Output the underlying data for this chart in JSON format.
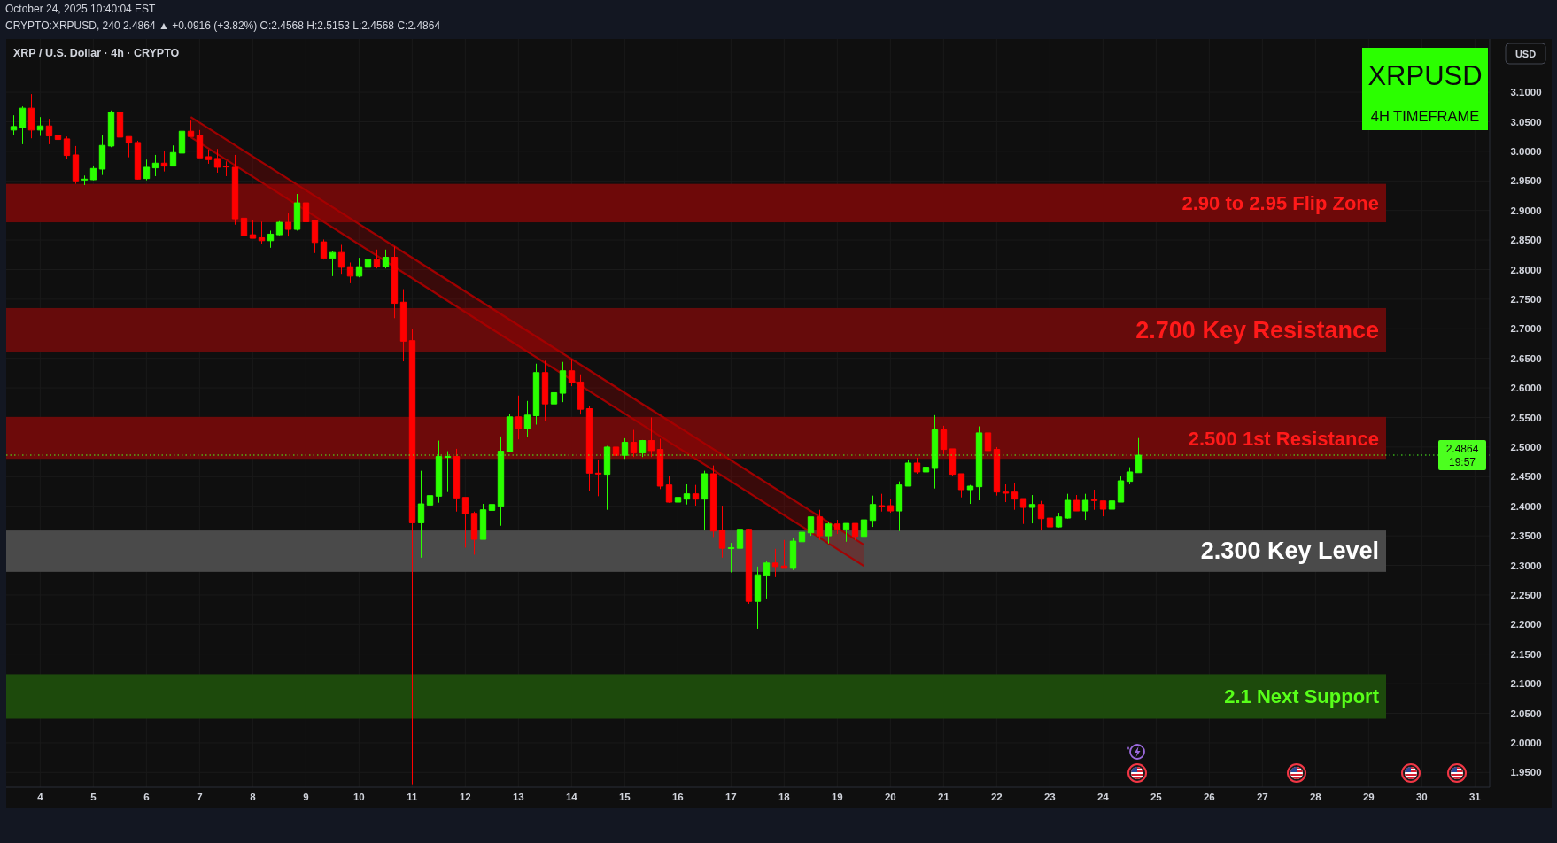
{
  "chart_data": {
    "type": "candlestick",
    "title": "XRP / U.S. Dollar · 4h · CRYPTO",
    "subtitle": "CRYPTO:XRPUSD, 240 2.4864 ▲ +0.0916 (+3.82%) O:2.4568 H:2.5153 L:2.4568 C:2.4864",
    "annotations": [
      "October 24, 2025 10:40:04 EST",
      "XRPUSD",
      "4H TIMEFRAME",
      "USD",
      "19:57"
    ],
    "x": [
      "2025-10-03T12:00",
      "2025-10-03T16:00",
      "2025-10-03T20:00",
      "2025-10-04T00:00",
      "2025-10-04T04:00",
      "2025-10-04T08:00",
      "2025-10-04T12:00",
      "2025-10-04T16:00",
      "2025-10-04T20:00",
      "2025-10-05T00:00",
      "2025-10-05T04:00",
      "2025-10-05T08:00",
      "2025-10-05T12:00",
      "2025-10-05T16:00",
      "2025-10-05T20:00",
      "2025-10-06T00:00",
      "2025-10-06T04:00",
      "2025-10-06T08:00",
      "2025-10-06T12:00",
      "2025-10-06T16:00",
      "2025-10-06T20:00",
      "2025-10-07T00:00",
      "2025-10-07T04:00",
      "2025-10-07T08:00",
      "2025-10-07T12:00",
      "2025-10-07T16:00",
      "2025-10-07T20:00",
      "2025-10-08T00:00",
      "2025-10-08T04:00",
      "2025-10-08T08:00",
      "2025-10-08T12:00",
      "2025-10-08T16:00",
      "2025-10-08T20:00",
      "2025-10-09T00:00",
      "2025-10-09T04:00",
      "2025-10-09T08:00",
      "2025-10-09T12:00",
      "2025-10-09T16:00",
      "2025-10-09T20:00",
      "2025-10-10T00:00",
      "2025-10-10T04:00",
      "2025-10-10T08:00",
      "2025-10-10T12:00",
      "2025-10-10T16:00",
      "2025-10-10T20:00",
      "2025-10-11T00:00",
      "2025-10-11T04:00",
      "2025-10-11T08:00",
      "2025-10-11T12:00",
      "2025-10-11T16:00",
      "2025-10-11T20:00",
      "2025-10-12T00:00",
      "2025-10-12T04:00",
      "2025-10-12T08:00",
      "2025-10-12T12:00",
      "2025-10-12T16:00",
      "2025-10-12T20:00",
      "2025-10-13T00:00",
      "2025-10-13T04:00",
      "2025-10-13T08:00",
      "2025-10-13T12:00",
      "2025-10-13T16:00",
      "2025-10-13T20:00",
      "2025-10-14T00:00",
      "2025-10-14T04:00",
      "2025-10-14T08:00",
      "2025-10-14T12:00",
      "2025-10-14T16:00",
      "2025-10-14T20:00",
      "2025-10-15T00:00",
      "2025-10-15T04:00",
      "2025-10-15T08:00",
      "2025-10-15T12:00",
      "2025-10-15T16:00",
      "2025-10-15T20:00",
      "2025-10-16T00:00",
      "2025-10-16T04:00",
      "2025-10-16T08:00",
      "2025-10-16T12:00",
      "2025-10-16T16:00",
      "2025-10-16T20:00",
      "2025-10-17T00:00",
      "2025-10-17T04:00",
      "2025-10-17T08:00",
      "2025-10-17T12:00",
      "2025-10-17T16:00",
      "2025-10-17T20:00",
      "2025-10-18T00:00",
      "2025-10-18T04:00",
      "2025-10-18T08:00",
      "2025-10-18T12:00",
      "2025-10-18T16:00",
      "2025-10-18T20:00",
      "2025-10-19T00:00",
      "2025-10-19T04:00",
      "2025-10-19T08:00",
      "2025-10-19T12:00",
      "2025-10-19T16:00",
      "2025-10-19T20:00",
      "2025-10-20T00:00",
      "2025-10-20T04:00",
      "2025-10-20T08:00",
      "2025-10-20T12:00",
      "2025-10-20T16:00",
      "2025-10-20T20:00",
      "2025-10-21T00:00",
      "2025-10-21T04:00",
      "2025-10-21T08:00",
      "2025-10-21T12:00",
      "2025-10-21T16:00",
      "2025-10-21T20:00",
      "2025-10-22T00:00",
      "2025-10-22T04:00",
      "2025-10-22T08:00",
      "2025-10-22T12:00",
      "2025-10-22T16:00",
      "2025-10-22T20:00",
      "2025-10-23T00:00",
      "2025-10-23T04:00",
      "2025-10-23T08:00",
      "2025-10-23T12:00",
      "2025-10-23T16:00",
      "2025-10-23T20:00",
      "2025-10-24T00:00",
      "2025-10-24T04:00",
      "2025-10-24T08:00",
      "2025-10-24T12:00",
      "2025-10-24T16:00"
    ],
    "ohlc": [
      [
        3.036,
        3.061,
        3.027,
        3.042
      ],
      [
        3.04,
        3.076,
        3.012,
        3.073
      ],
      [
        3.073,
        3.097,
        3.022,
        3.036
      ],
      [
        3.036,
        3.058,
        3.026,
        3.043
      ],
      [
        3.043,
        3.055,
        3.012,
        3.026
      ],
      [
        3.027,
        3.034,
        3.018,
        3.02
      ],
      [
        3.021,
        3.025,
        2.987,
        2.993
      ],
      [
        2.994,
        3.009,
        2.945,
        2.95
      ],
      [
        2.952,
        2.959,
        2.943,
        2.953
      ],
      [
        2.952,
        2.976,
        2.951,
        2.971
      ],
      [
        2.97,
        3.028,
        2.96,
        3.01
      ],
      [
        3.009,
        3.069,
        3.007,
        3.066
      ],
      [
        3.066,
        3.073,
        3.005,
        3.024
      ],
      [
        3.025,
        3.025,
        2.99,
        3.014
      ],
      [
        3.015,
        3.018,
        2.952,
        2.953
      ],
      [
        2.954,
        2.986,
        2.951,
        2.973
      ],
      [
        2.972,
        2.994,
        2.958,
        2.98
      ],
      [
        2.98,
        3.001,
        2.966,
        2.975
      ],
      [
        2.975,
        3.01,
        2.975,
        2.998
      ],
      [
        2.997,
        3.04,
        2.988,
        3.034
      ],
      [
        3.034,
        3.052,
        3.025,
        3.025
      ],
      [
        3.027,
        3.036,
        2.989,
        2.989
      ],
      [
        2.991,
        3.003,
        2.979,
        2.986
      ],
      [
        2.988,
        3.004,
        2.964,
        2.973
      ],
      [
        2.975,
        2.983,
        2.958,
        2.974
      ],
      [
        2.973,
        2.994,
        2.876,
        2.886
      ],
      [
        2.887,
        2.907,
        2.853,
        2.857
      ],
      [
        2.859,
        2.884,
        2.853,
        2.853
      ],
      [
        2.854,
        2.881,
        2.844,
        2.849
      ],
      [
        2.849,
        2.866,
        2.837,
        2.86
      ],
      [
        2.859,
        2.882,
        2.858,
        2.88
      ],
      [
        2.88,
        2.895,
        2.856,
        2.868
      ],
      [
        2.868,
        2.928,
        2.866,
        2.913
      ],
      [
        2.913,
        2.914,
        2.88,
        2.881
      ],
      [
        2.883,
        2.883,
        2.828,
        2.846
      ],
      [
        2.847,
        2.851,
        2.817,
        2.819
      ],
      [
        2.819,
        2.831,
        2.789,
        2.829
      ],
      [
        2.829,
        2.842,
        2.793,
        2.804
      ],
      [
        2.805,
        2.812,
        2.777,
        2.789
      ],
      [
        2.789,
        2.82,
        2.787,
        2.805
      ],
      [
        2.804,
        2.832,
        2.795,
        2.817
      ],
      [
        2.817,
        2.834,
        2.802,
        2.805
      ],
      [
        2.805,
        2.834,
        2.802,
        2.821
      ],
      [
        2.821,
        2.839,
        2.718,
        2.743
      ],
      [
        2.745,
        2.767,
        2.645,
        2.679
      ],
      [
        2.68,
        2.7,
        1.93,
        2.372
      ],
      [
        2.372,
        2.46,
        2.313,
        2.404
      ],
      [
        2.402,
        2.457,
        2.397,
        2.418
      ],
      [
        2.417,
        2.511,
        2.406,
        2.484
      ],
      [
        2.483,
        2.493,
        2.424,
        2.484
      ],
      [
        2.484,
        2.497,
        2.391,
        2.414
      ],
      [
        2.415,
        2.415,
        2.33,
        2.387
      ],
      [
        2.388,
        2.391,
        2.318,
        2.344
      ],
      [
        2.344,
        2.404,
        2.344,
        2.394
      ],
      [
        2.393,
        2.415,
        2.375,
        2.403
      ],
      [
        2.4,
        2.518,
        2.367,
        2.493
      ],
      [
        2.492,
        2.556,
        2.492,
        2.551
      ],
      [
        2.551,
        2.587,
        2.513,
        2.531
      ],
      [
        2.531,
        2.578,
        2.517,
        2.554
      ],
      [
        2.553,
        2.641,
        2.538,
        2.626
      ],
      [
        2.626,
        2.646,
        2.544,
        2.573
      ],
      [
        2.573,
        2.617,
        2.556,
        2.592
      ],
      [
        2.591,
        2.644,
        2.576,
        2.629
      ],
      [
        2.629,
        2.649,
        2.603,
        2.609
      ],
      [
        2.61,
        2.623,
        2.555,
        2.564
      ],
      [
        2.565,
        2.569,
        2.426,
        2.456
      ],
      [
        2.456,
        2.479,
        2.417,
        2.455
      ],
      [
        2.454,
        2.502,
        2.394,
        2.5
      ],
      [
        2.5,
        2.538,
        2.468,
        2.486
      ],
      [
        2.486,
        2.515,
        2.48,
        2.508
      ],
      [
        2.508,
        2.529,
        2.483,
        2.49
      ],
      [
        2.49,
        2.512,
        2.483,
        2.511
      ],
      [
        2.511,
        2.55,
        2.483,
        2.494
      ],
      [
        2.496,
        2.514,
        2.429,
        2.434
      ],
      [
        2.436,
        2.452,
        2.406,
        2.407
      ],
      [
        2.407,
        2.424,
        2.381,
        2.415
      ],
      [
        2.412,
        2.437,
        2.403,
        2.421
      ],
      [
        2.421,
        2.436,
        2.401,
        2.412
      ],
      [
        2.412,
        2.46,
        2.359,
        2.455
      ],
      [
        2.455,
        2.469,
        2.348,
        2.358
      ],
      [
        2.359,
        2.401,
        2.313,
        2.329
      ],
      [
        2.329,
        2.338,
        2.288,
        2.33
      ],
      [
        2.329,
        2.4,
        2.322,
        2.361
      ],
      [
        2.361,
        2.362,
        2.235,
        2.239
      ],
      [
        2.239,
        2.298,
        2.193,
        2.284
      ],
      [
        2.283,
        2.307,
        2.244,
        2.304
      ],
      [
        2.304,
        2.328,
        2.28,
        2.298
      ],
      [
        2.299,
        2.343,
        2.295,
        2.295
      ],
      [
        2.295,
        2.346,
        2.292,
        2.341
      ],
      [
        2.34,
        2.379,
        2.319,
        2.356
      ],
      [
        2.355,
        2.382,
        2.35,
        2.382
      ],
      [
        2.382,
        2.394,
        2.343,
        2.35
      ],
      [
        2.35,
        2.374,
        2.337,
        2.37
      ],
      [
        2.37,
        2.377,
        2.353,
        2.361
      ],
      [
        2.361,
        2.371,
        2.34,
        2.371
      ],
      [
        2.371,
        2.371,
        2.343,
        2.349
      ],
      [
        2.349,
        2.401,
        2.32,
        2.377
      ],
      [
        2.376,
        2.418,
        2.365,
        2.403
      ],
      [
        2.401,
        2.421,
        2.391,
        2.4
      ],
      [
        2.401,
        2.412,
        2.389,
        2.392
      ],
      [
        2.392,
        2.442,
        2.358,
        2.436
      ],
      [
        2.434,
        2.479,
        2.434,
        2.473
      ],
      [
        2.473,
        2.482,
        2.455,
        2.458
      ],
      [
        2.458,
        2.488,
        2.449,
        2.466
      ],
      [
        2.464,
        2.554,
        2.43,
        2.529
      ],
      [
        2.529,
        2.536,
        2.488,
        2.496
      ],
      [
        2.497,
        2.497,
        2.451,
        2.454
      ],
      [
        2.455,
        2.455,
        2.415,
        2.428
      ],
      [
        2.428,
        2.436,
        2.404,
        2.434
      ],
      [
        2.433,
        2.535,
        2.41,
        2.524
      ],
      [
        2.524,
        2.526,
        2.476,
        2.494
      ],
      [
        2.496,
        2.5,
        2.418,
        2.424
      ],
      [
        2.424,
        2.437,
        2.407,
        2.422
      ],
      [
        2.424,
        2.44,
        2.394,
        2.412
      ],
      [
        2.413,
        2.413,
        2.37,
        2.398
      ],
      [
        2.398,
        2.419,
        2.371,
        2.403
      ],
      [
        2.403,
        2.409,
        2.359,
        2.379
      ],
      [
        2.38,
        2.383,
        2.331,
        2.365
      ],
      [
        2.365,
        2.389,
        2.364,
        2.382
      ],
      [
        2.38,
        2.421,
        2.379,
        2.41
      ],
      [
        2.41,
        2.419,
        2.392,
        2.392
      ],
      [
        2.392,
        2.421,
        2.377,
        2.41
      ],
      [
        2.411,
        2.428,
        2.394,
        2.41
      ],
      [
        2.409,
        2.409,
        2.383,
        2.395
      ],
      [
        2.395,
        2.412,
        2.389,
        2.409
      ],
      [
        2.407,
        2.451,
        2.407,
        2.443
      ],
      [
        2.442,
        2.466,
        2.437,
        2.458
      ],
      [
        2.4568,
        2.5153,
        2.4568,
        2.4864
      ]
    ],
    "colors": [
      "#2bff00",
      "#2bff00",
      "#ff0000",
      "#2bff00",
      "#ff0000",
      "#ff0000",
      "#ff0000",
      "#ff0000",
      "#2bff00",
      "#2bff00",
      "#2bff00",
      "#2bff00",
      "#ff0000",
      "#ff0000",
      "#ff0000",
      "#2bff00",
      "#2bff00",
      "#ff0000",
      "#2bff00",
      "#2bff00",
      "#ff0000",
      "#ff0000",
      "#ff0000",
      "#ff0000",
      "#ff0000",
      "#ff0000",
      "#ff0000",
      "#ff0000",
      "#ff0000",
      "#2bff00",
      "#2bff00",
      "#ff0000",
      "#2bff00",
      "#ff0000",
      "#ff0000",
      "#ff0000",
      "#2bff00",
      "#ff0000",
      "#ff0000",
      "#2bff00",
      "#2bff00",
      "#ff0000",
      "#2bff00",
      "#ff0000",
      "#ff0000",
      "#ff0000",
      "#2bff00",
      "#2bff00",
      "#2bff00",
      "#2bff00",
      "#ff0000",
      "#ff0000",
      "#ff0000",
      "#2bff00",
      "#2bff00",
      "#2bff00",
      "#2bff00",
      "#ff0000",
      "#2bff00",
      "#2bff00",
      "#ff0000",
      "#2bff00",
      "#2bff00",
      "#ff0000",
      "#ff0000",
      "#ff0000",
      "#ff0000",
      "#2bff00",
      "#ff0000",
      "#2bff00",
      "#ff0000",
      "#2bff00",
      "#ff0000",
      "#ff0000",
      "#ff0000",
      "#2bff00",
      "#2bff00",
      "#ff0000",
      "#2bff00",
      "#ff0000",
      "#ff0000",
      "#2bff00",
      "#2bff00",
      "#ff0000",
      "#2bff00",
      "#2bff00",
      "#ff0000",
      "#ff0000",
      "#2bff00",
      "#2bff00",
      "#2bff00",
      "#ff0000",
      "#2bff00",
      "#ff0000",
      "#2bff00",
      "#ff0000",
      "#2bff00",
      "#2bff00",
      "#ff0000",
      "#ff0000",
      "#2bff00",
      "#2bff00",
      "#ff0000",
      "#2bff00",
      "#2bff00",
      "#ff0000",
      "#ff0000",
      "#ff0000",
      "#2bff00",
      "#2bff00",
      "#ff0000",
      "#ff0000",
      "#ff0000",
      "#ff0000",
      "#ff0000",
      "#2bff00",
      "#ff0000",
      "#ff0000",
      "#2bff00",
      "#2bff00",
      "#ff0000",
      "#2bff00",
      "#ff0000",
      "#ff0000",
      "#2bff00",
      "#2bff00",
      "#2bff00",
      "#2bff00"
    ],
    "series": [
      {
        "type": "line",
        "color": "#a80000",
        "x": [
          "2025-10-06T20:00",
          "2025-10-19T12:00"
        ],
        "values": [
          3.058,
          2.335
        ]
      },
      {
        "type": "line",
        "color": "#a80000",
        "x": [
          "2025-10-06T20:00",
          "2025-10-19T12:00"
        ],
        "values": [
          3.024,
          2.299
        ],
        "lower": [
          3.024,
          2.299
        ],
        "upper": [
          3.058,
          2.335
        ]
      }
    ],
    "xlim": [
      "2025-10-03T08:40",
      "2025-10-31T06:40"
    ],
    "xticks": [
      {
        "value": "2025-10-04",
        "label": "4"
      },
      {
        "value": "2025-10-05",
        "label": "5"
      },
      {
        "value": "2025-10-06",
        "label": "6"
      },
      {
        "value": "2025-10-07",
        "label": "7"
      },
      {
        "value": "2025-10-08",
        "label": "8"
      },
      {
        "value": "2025-10-09",
        "label": "9"
      },
      {
        "value": "2025-10-10",
        "label": "10"
      },
      {
        "value": "2025-10-11",
        "label": "11"
      },
      {
        "value": "2025-10-12",
        "label": "12"
      },
      {
        "value": "2025-10-13",
        "label": "13"
      },
      {
        "value": "2025-10-14",
        "label": "14"
      },
      {
        "value": "2025-10-15",
        "label": "15"
      },
      {
        "value": "2025-10-16",
        "label": "16"
      },
      {
        "value": "2025-10-17",
        "label": "17"
      },
      {
        "value": "2025-10-18",
        "label": "18"
      },
      {
        "value": "2025-10-19",
        "label": "19"
      },
      {
        "value": "2025-10-20",
        "label": "20"
      },
      {
        "value": "2025-10-21",
        "label": "21"
      },
      {
        "value": "2025-10-22",
        "label": "22"
      },
      {
        "value": "2025-10-23",
        "label": "23"
      },
      {
        "value": "2025-10-24",
        "label": "24"
      },
      {
        "value": "2025-10-25",
        "label": "25"
      },
      {
        "value": "2025-10-26",
        "label": "26"
      },
      {
        "value": "2025-10-27",
        "label": "27"
      },
      {
        "value": "2025-10-28",
        "label": "28"
      },
      {
        "value": "2025-10-29",
        "label": "29"
      },
      {
        "value": "2025-10-30",
        "label": "30"
      },
      {
        "value": "2025-10-31",
        "label": "31"
      }
    ],
    "ylim": [
      1.925,
      3.19
    ],
    "yticks": [
      {
        "value": 1.95,
        "label": "1.9500"
      },
      {
        "value": 2.0,
        "label": "2.0000"
      },
      {
        "value": 2.05,
        "label": "2.0500"
      },
      {
        "value": 2.1,
        "label": "2.1000"
      },
      {
        "value": 2.15,
        "label": "2.1500"
      },
      {
        "value": 2.2,
        "label": "2.2000"
      },
      {
        "value": 2.25,
        "label": "2.2500"
      },
      {
        "value": 2.3,
        "label": "2.3000"
      },
      {
        "value": 2.35,
        "label": "2.3500"
      },
      {
        "value": 2.4,
        "label": "2.4000"
      },
      {
        "value": 2.45,
        "label": "2.4500"
      },
      {
        "value": 2.5,
        "label": "2.5000"
      },
      {
        "value": 2.55,
        "label": "2.5500"
      },
      {
        "value": 2.6,
        "label": "2.6000"
      },
      {
        "value": 2.65,
        "label": "2.6500"
      },
      {
        "value": 2.7,
        "label": "2.7000"
      },
      {
        "value": 2.75,
        "label": "2.7500"
      },
      {
        "value": 2.8,
        "label": "2.8000"
      },
      {
        "value": 2.85,
        "label": "2.8500"
      },
      {
        "value": 2.9,
        "label": "2.9000"
      },
      {
        "value": 2.95,
        "label": "2.9500"
      },
      {
        "value": 3.0,
        "label": "3.0000"
      },
      {
        "value": 3.05,
        "label": "3.0500"
      },
      {
        "value": 3.1,
        "label": "3.1000"
      }
    ],
    "grid": true,
    "ref_lines": [
      {
        "axis": "y",
        "value": 2.4864,
        "label": "2.4864",
        "color": "#4cff1f",
        "line_style": "dotted"
      }
    ],
    "bands": [
      {
        "axis": "y",
        "from": 2.88,
        "to": 2.945,
        "label": "2.90 to 2.95 Flip Zone",
        "color": "#6e0909"
      },
      {
        "axis": "y",
        "from": 2.66,
        "to": 2.735,
        "label": "2.700 Key Resistance",
        "color": "#660b0b"
      },
      {
        "axis": "y",
        "from": 2.48,
        "to": 2.551,
        "label": "2.500 1st Resistance",
        "color": "#6d0a0a"
      },
      {
        "axis": "y",
        "from": 2.289,
        "to": 2.359,
        "label": "2.300 Key Level",
        "color": "#4a4a4a"
      },
      {
        "axis": "y",
        "from": 2.041,
        "to": 2.116,
        "label": "2.1 Next Support",
        "color": "#1d4a0c"
      }
    ]
  }
}
